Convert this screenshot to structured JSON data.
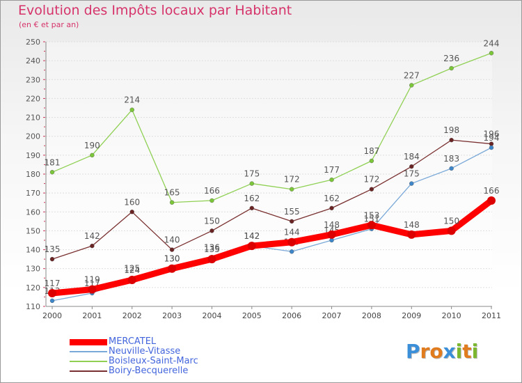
{
  "header": {
    "title": "Evolution des Impôts locaux par Habitant",
    "subtitle": "(en € et par an)"
  },
  "brand": {
    "letters": [
      "P",
      "r",
      "o",
      "x",
      "i",
      "t",
      "i"
    ],
    "colors": [
      "#3a8fd8",
      "#e07b1e",
      "#e07b1e",
      "#3a8fd8",
      "#7cb82f",
      "#e07b1e",
      "#7cb82f"
    ]
  },
  "chart_data": {
    "type": "line",
    "title": "Evolution des Impôts locaux par Habitant",
    "subtitle": "(en € et par an)",
    "xlabel": "",
    "ylabel": "",
    "ylim": [
      110,
      250
    ],
    "yticks": [
      110,
      120,
      130,
      140,
      150,
      160,
      170,
      180,
      190,
      200,
      210,
      220,
      230,
      240,
      250
    ],
    "categories": [
      "2000",
      "2001",
      "2002",
      "2003",
      "2004",
      "2005",
      "2006",
      "2007",
      "2008",
      "2009",
      "2010",
      "2011"
    ],
    "grid": "horizontal",
    "legend_position": "bottom-left",
    "series": [
      {
        "name": "Boisleux-Saint-Marc",
        "color": "#8fd053",
        "marker": "#7cc63a",
        "thick": false,
        "values": [
          181,
          190,
          214,
          165,
          166,
          175,
          172,
          177,
          187,
          227,
          236,
          244
        ],
        "labels": [
          "181",
          "190",
          "214",
          "165",
          "166",
          "175",
          "172",
          "177",
          "187",
          "227",
          "236",
          "244"
        ]
      },
      {
        "name": "Boiry-Becquerelle",
        "color": "#7a3030",
        "marker": "#6a2424",
        "thick": false,
        "values": [
          135,
          142,
          160,
          140,
          150,
          162,
          155,
          162,
          172,
          184,
          198,
          196
        ],
        "labels": [
          "135",
          "142",
          "160",
          "140",
          "150",
          "162",
          "155",
          "162",
          "172",
          "184",
          "198",
          "196"
        ]
      },
      {
        "name": "Neuville-Vitasse",
        "color": "#7aa9d8",
        "marker": "#3d86c9",
        "thick": false,
        "values": [
          113,
          117,
          125,
          130,
          136,
          142,
          139,
          145,
          151,
          175,
          183,
          194
        ],
        "labels": [
          "113",
          "117",
          "125",
          "130",
          "136",
          "142",
          "139",
          "145",
          "151",
          "175",
          "183",
          "194"
        ]
      },
      {
        "name": "MERCATEL",
        "color": "#ff0000",
        "marker": "#dd0000",
        "thick": true,
        "values": [
          117,
          119,
          124,
          130,
          135,
          142,
          144,
          148,
          153,
          148,
          150,
          166
        ],
        "labels": [
          "117",
          "119",
          "124",
          "130",
          "135",
          "142",
          "144",
          "148",
          "153",
          "148",
          "150",
          "166"
        ]
      }
    ],
    "legend_order": [
      "MERCATEL",
      "Neuville-Vitasse",
      "Boisleux-Saint-Marc",
      "Boiry-Becquerelle"
    ]
  }
}
